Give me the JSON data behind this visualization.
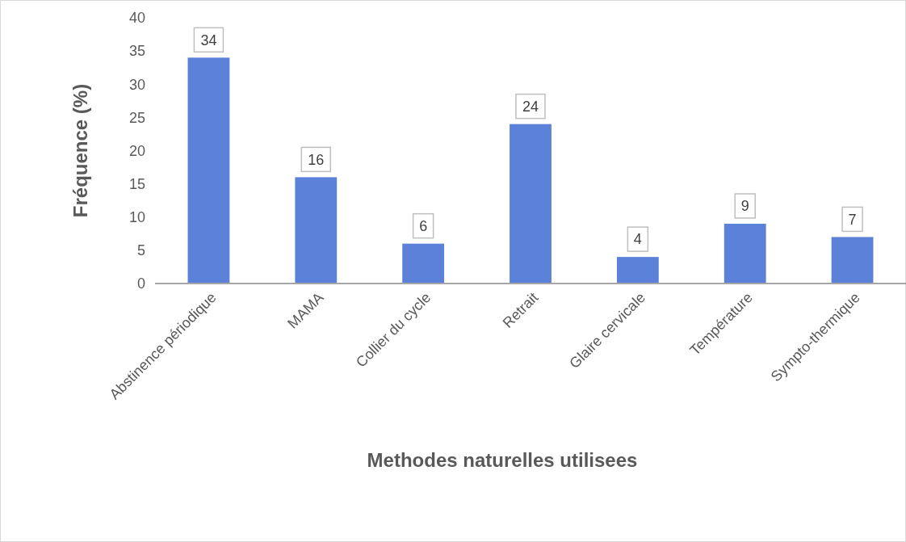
{
  "chart_data": {
    "type": "bar",
    "xlabel": "Methodes naturelles utilisees",
    "ylabel": "Fréquence (%)",
    "categories": [
      "Abstinence périodique",
      "MAMA",
      "Collier du cycle",
      "Retrait",
      "Glaire cervicale",
      "Température",
      "Sympto-thermique"
    ],
    "values": [
      34,
      16,
      6,
      24,
      4,
      9,
      7
    ],
    "color": "#5b82d8",
    "ylim": [
      0,
      40
    ],
    "yticks": [
      0,
      5,
      10,
      15,
      20,
      25,
      30,
      35,
      40
    ],
    "grid": false,
    "data_labels": true
  }
}
